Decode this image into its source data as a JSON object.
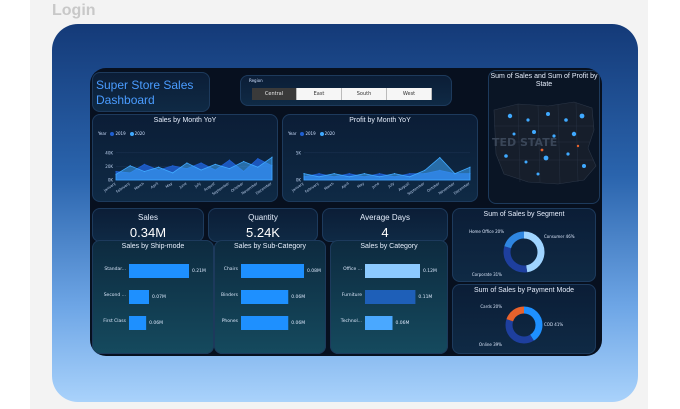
{
  "page": {
    "header": "Login"
  },
  "dashboard": {
    "title_line1": "Super Store Sales",
    "title_line2": "Dashboard",
    "region": {
      "label": "Region",
      "options": [
        "Central",
        "East",
        "South",
        "West"
      ],
      "selected": "Central"
    },
    "kpis": [
      {
        "label": "Sales",
        "value": "0.34M"
      },
      {
        "label": "Quantity",
        "value": "5.24K"
      },
      {
        "label": "Average Days",
        "value": "4"
      }
    ],
    "map": {
      "title": "Sum of Sales and Sum of Profit by State",
      "watermark": "TED STATE"
    },
    "colors": {
      "accent": "#1e90ff",
      "series_2019": "#1f5fd1",
      "series_2020": "#3fa9ff",
      "ring_light": "#9fd4ff",
      "ring_dark": "#1e3f9e",
      "ring_orange": "#e8622c"
    }
  },
  "chart_data": [
    {
      "type": "area",
      "title": "Sales by Month YoY",
      "legend_title": "Year",
      "categories": [
        "January",
        "February",
        "March",
        "April",
        "May",
        "June",
        "July",
        "August",
        "September",
        "October",
        "November",
        "December"
      ],
      "ylabel_ticks": [
        "0K",
        "20K",
        "40K"
      ],
      "ylim": [
        0,
        45
      ],
      "series": [
        {
          "name": "2019",
          "values": [
            12,
            10,
            22,
            14,
            20,
            16,
            24,
            14,
            28,
            12,
            30,
            20
          ]
        },
        {
          "name": "2020",
          "values": [
            8,
            20,
            12,
            18,
            10,
            24,
            14,
            22,
            16,
            26,
            18,
            32
          ]
        }
      ]
    },
    {
      "type": "area",
      "title": "Profit by Month YoY",
      "legend_title": "Year",
      "categories": [
        "January",
        "February",
        "March",
        "April",
        "May",
        "June",
        "July",
        "August",
        "September",
        "October",
        "November",
        "December"
      ],
      "ylabel_ticks": [
        "0K",
        "5K"
      ],
      "ylim": [
        0,
        10
      ],
      "series": [
        {
          "name": "2019",
          "values": [
            1,
            2,
            1,
            2,
            1,
            2,
            1,
            2,
            2,
            3,
            2,
            2
          ]
        },
        {
          "name": "2020",
          "values": [
            2,
            1,
            2,
            1,
            2,
            1,
            2,
            1,
            3,
            7,
            2,
            4
          ]
        }
      ]
    },
    {
      "type": "bar",
      "title": "Sales by Ship-mode",
      "categories": [
        "Standar...",
        "Second ...",
        "First Class"
      ],
      "values": [
        0.21,
        0.07,
        0.06
      ],
      "labels": [
        "0.21M",
        "0.07M",
        "0.06M"
      ]
    },
    {
      "type": "bar",
      "title": "Sales by Sub-Category",
      "categories": [
        "Chairs",
        "Binders",
        "Phones"
      ],
      "values": [
        0.08,
        0.06,
        0.06
      ],
      "labels": [
        "0.08M",
        "0.06M",
        "0.06M"
      ]
    },
    {
      "type": "bar",
      "title": "Sales by Category",
      "categories": [
        "Office ...",
        "Furniture",
        "Technol..."
      ],
      "values": [
        0.12,
        0.11,
        0.06
      ],
      "labels": [
        "0.12M",
        "0.11M",
        "0.06M"
      ]
    },
    {
      "type": "pie",
      "title": "Sum of Sales by Segment",
      "labels": [
        "Consumer 46%",
        "Corporate 31%",
        "Home Office 20%"
      ],
      "values": [
        46,
        31,
        20
      ]
    },
    {
      "type": "pie",
      "title": "Sum of Sales by Payment Mode",
      "labels": [
        "COD 41%",
        "Online 39%",
        "Cards 20%"
      ],
      "values": [
        41,
        39,
        20
      ]
    }
  ]
}
